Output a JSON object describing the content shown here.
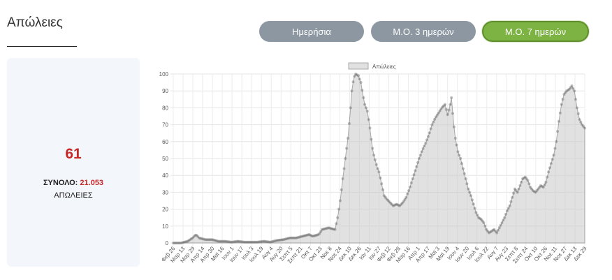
{
  "page": {
    "title": "Απώλειες"
  },
  "buttons": {
    "daily": "Ημερήσια",
    "avg3": "Μ.Ο. 3 ημερών",
    "avg7": "Μ.Ο. 7 ημερών",
    "active": "avg7"
  },
  "stats": {
    "value": "61",
    "total_label": "ΣΥΝΟΛΟ:",
    "total_value": "21.053",
    "sub_label": "ΑΠΩΛΕΙΕΣ"
  },
  "colors": {
    "accent_green": "#7cb342",
    "button_grey": "#8c97a1",
    "value_red": "#c62828"
  },
  "chart_data": {
    "type": "area",
    "legend": [
      "Απώλειες"
    ],
    "legend_position": "top",
    "ylim": [
      0,
      100
    ],
    "yticks": [
      0,
      10,
      20,
      30,
      40,
      50,
      60,
      70,
      80,
      90,
      100
    ],
    "grid": true,
    "x_tick_labels": [
      "Φεβ 26",
      "Μαρ 13",
      "Μαρ 29",
      "Απρ 14",
      "Απρ 30",
      "Μαϊ 16",
      "Ιουν 1",
      "Ιουν 17",
      "Ιουλ 3",
      "Ιουλ 19",
      "Αυγ 4",
      "Αυγ 20",
      "Σεπτ 5",
      "Σεπτ 21",
      "Οκτ 7",
      "Οκτ 23",
      "Νοε 8",
      "Νοε 24",
      "Δεκ 10",
      "Δεκ 26",
      "Ιαν 11",
      "Ιαν 27",
      "Φεβ 12",
      "Φεβ 28",
      "Μαρ 16",
      "Απρ 1",
      "Απρ 17",
      "Μαϊ 3",
      "Μαϊ 19",
      "Ιουν 4",
      "Ιουν 20",
      "Ιουλ 6",
      "Ιουλ 22",
      "Αυγ 7",
      "Αυγ 23",
      "Σεπτ 8",
      "Σεπτ 24",
      "Οκτ 10",
      "Οκτ 26",
      "Νοε 11",
      "Νοε 27",
      "Δεκ 13",
      "Δεκ 29"
    ],
    "keypoints": [
      [
        0,
        0
      ],
      [
        12,
        0
      ],
      [
        22,
        1
      ],
      [
        30,
        3
      ],
      [
        35,
        5
      ],
      [
        40,
        3
      ],
      [
        50,
        2
      ],
      [
        60,
        2
      ],
      [
        70,
        1
      ],
      [
        80,
        1
      ],
      [
        90,
        0.5
      ],
      [
        100,
        1
      ],
      [
        110,
        0.5
      ],
      [
        120,
        0.5
      ],
      [
        130,
        0.5
      ],
      [
        140,
        1
      ],
      [
        150,
        0.5
      ],
      [
        160,
        1.5
      ],
      [
        170,
        2
      ],
      [
        180,
        3
      ],
      [
        190,
        3
      ],
      [
        200,
        4
      ],
      [
        210,
        5
      ],
      [
        215,
        4
      ],
      [
        225,
        5
      ],
      [
        230,
        8
      ],
      [
        240,
        9
      ],
      [
        250,
        8
      ],
      [
        254,
        15
      ],
      [
        258,
        25
      ],
      [
        262,
        38
      ],
      [
        266,
        50
      ],
      [
        270,
        62
      ],
      [
        273,
        75
      ],
      [
        276,
        90
      ],
      [
        279,
        98
      ],
      [
        282,
        100
      ],
      [
        286,
        99
      ],
      [
        290,
        95
      ],
      [
        293,
        88
      ],
      [
        296,
        82
      ],
      [
        300,
        78
      ],
      [
        304,
        68
      ],
      [
        307,
        58
      ],
      [
        310,
        52
      ],
      [
        315,
        45
      ],
      [
        318,
        42
      ],
      [
        322,
        35
      ],
      [
        326,
        28
      ],
      [
        330,
        26
      ],
      [
        335,
        24
      ],
      [
        340,
        22
      ],
      [
        345,
        23
      ],
      [
        350,
        22
      ],
      [
        355,
        24
      ],
      [
        360,
        27
      ],
      [
        365,
        32
      ],
      [
        370,
        38
      ],
      [
        375,
        44
      ],
      [
        380,
        50
      ],
      [
        385,
        55
      ],
      [
        390,
        59
      ],
      [
        395,
        64
      ],
      [
        400,
        70
      ],
      [
        405,
        74
      ],
      [
        410,
        77
      ],
      [
        415,
        80
      ],
      [
        420,
        82
      ],
      [
        424,
        76
      ],
      [
        427,
        80
      ],
      [
        430,
        86
      ],
      [
        433,
        72
      ],
      [
        436,
        62
      ],
      [
        440,
        54
      ],
      [
        444,
        50
      ],
      [
        448,
        44
      ],
      [
        452,
        38
      ],
      [
        456,
        32
      ],
      [
        460,
        28
      ],
      [
        464,
        23
      ],
      [
        468,
        18
      ],
      [
        472,
        15
      ],
      [
        476,
        14
      ],
      [
        480,
        12
      ],
      [
        484,
        8
      ],
      [
        488,
        6
      ],
      [
        492,
        7
      ],
      [
        496,
        8
      ],
      [
        500,
        6
      ],
      [
        504,
        9
      ],
      [
        508,
        12
      ],
      [
        512,
        15
      ],
      [
        516,
        19
      ],
      [
        520,
        22
      ],
      [
        524,
        27
      ],
      [
        528,
        32
      ],
      [
        532,
        30
      ],
      [
        536,
        34
      ],
      [
        540,
        38
      ],
      [
        544,
        39
      ],
      [
        548,
        37
      ],
      [
        552,
        33
      ],
      [
        556,
        31
      ],
      [
        560,
        30
      ],
      [
        564,
        32
      ],
      [
        568,
        34
      ],
      [
        572,
        33
      ],
      [
        576,
        36
      ],
      [
        580,
        42
      ],
      [
        584,
        47
      ],
      [
        588,
        52
      ],
      [
        592,
        60
      ],
      [
        596,
        72
      ],
      [
        600,
        82
      ],
      [
        604,
        88
      ],
      [
        608,
        90
      ],
      [
        612,
        91
      ],
      [
        616,
        93
      ],
      [
        620,
        90
      ],
      [
        624,
        80
      ],
      [
        628,
        73
      ],
      [
        632,
        70
      ],
      [
        636,
        68
      ]
    ]
  }
}
